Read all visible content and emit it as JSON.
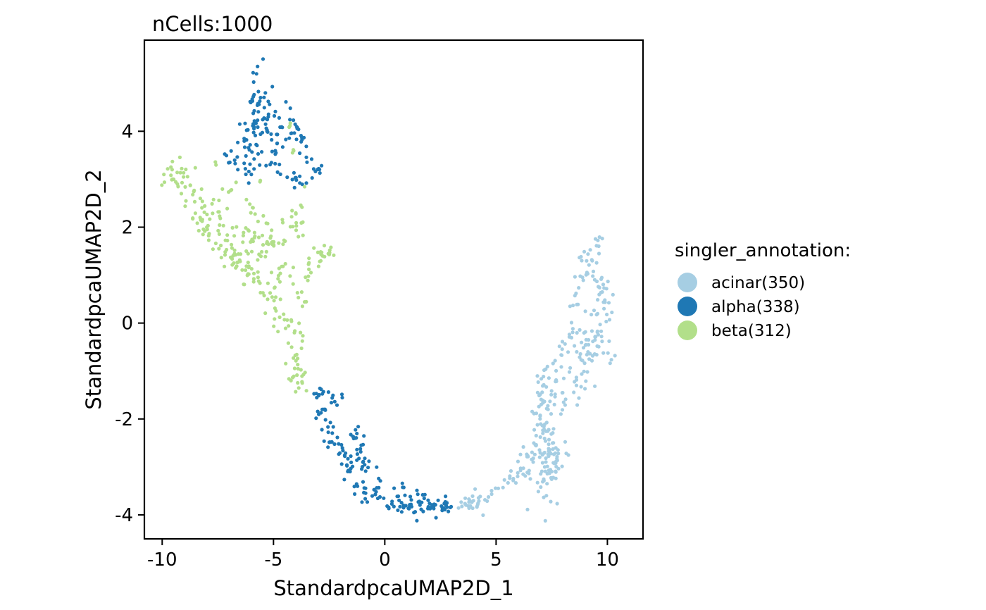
{
  "chart_data": {
    "type": "scatter",
    "title": "nCells:1000",
    "xlabel": "StandardpcaUMAP2D_1",
    "ylabel": "StandardpcaUMAP2D_2",
    "xlim": [
      -10.8,
      11.6
    ],
    "ylim": [
      -4.5,
      5.9
    ],
    "xticks": [
      -10,
      -5,
      0,
      5,
      10
    ],
    "yticks": [
      -4,
      -2,
      0,
      2,
      4
    ],
    "xtick_labels": [
      "-10",
      "-5",
      "0",
      "5",
      "10"
    ],
    "ytick_labels": [
      "-4",
      "-2",
      "0",
      "2",
      "4"
    ],
    "grid": false,
    "legend": {
      "title": "singler_annotation:",
      "position": "right"
    },
    "series": [
      {
        "name": "acinar(350)",
        "color": "#a6cee3",
        "count": 350,
        "clusters": [
          {
            "points": [
              [
                3.2,
                -3.8
              ],
              [
                3.6,
                -3.75
              ],
              [
                4.0,
                -3.8
              ],
              [
                4.3,
                -3.7
              ],
              [
                4.6,
                -3.65
              ],
              [
                4.9,
                -3.55
              ],
              [
                5.2,
                -3.45
              ],
              [
                5.5,
                -3.3
              ],
              [
                5.8,
                -3.2
              ],
              [
                6.1,
                -3.1
              ],
              [
                4.2,
                -3.9
              ],
              [
                3.9,
                -3.65
              ]
            ],
            "sd": [
              0.15,
              0.08
            ],
            "n": 45
          },
          {
            "points": [
              [
                6.3,
                -2.9
              ],
              [
                6.5,
                -3.0
              ],
              [
                6.8,
                -2.6
              ],
              [
                7.0,
                -2.2
              ],
              [
                7.2,
                -2.6
              ],
              [
                7.4,
                -2.0
              ],
              [
                7.6,
                -2.4
              ],
              [
                7.8,
                -2.8
              ],
              [
                7.4,
                -3.1
              ],
              [
                7.6,
                -3.2
              ],
              [
                7.0,
                -1.8
              ],
              [
                7.3,
                -1.5
              ],
              [
                6.9,
                -1.4
              ],
              [
                7.6,
                -1.2
              ],
              [
                6.8,
                -2.9
              ],
              [
                7.1,
                -3.3
              ]
            ],
            "sd": [
              0.25,
              0.22
            ],
            "n": 155
          },
          {
            "points": [
              [
                8.1,
                -1.8
              ],
              [
                8.4,
                -1.4
              ],
              [
                8.6,
                -1.1
              ],
              [
                8.9,
                -0.8
              ],
              [
                9.1,
                -1.2
              ],
              [
                9.3,
                -0.6
              ],
              [
                9.6,
                -0.3
              ],
              [
                9.9,
                -0.2
              ],
              [
                10.1,
                -0.5
              ],
              [
                10.2,
                0.2
              ],
              [
                10.0,
                0.4
              ],
              [
                9.7,
                0.7
              ],
              [
                9.5,
                1.0
              ],
              [
                9.2,
                1.3
              ],
              [
                8.9,
                1.1
              ],
              [
                8.6,
                0.8
              ],
              [
                8.5,
                0.4
              ],
              [
                8.3,
                -0.2
              ],
              [
                8.1,
                -0.6
              ],
              [
                7.9,
                -0.9
              ],
              [
                9.3,
                1.5
              ],
              [
                9.6,
                1.55
              ],
              [
                9.4,
                0.2
              ],
              [
                8.8,
                -0.4
              ]
            ],
            "sd": [
              0.18,
              0.18
            ],
            "n": 150
          }
        ]
      },
      {
        "name": "alpha(338)",
        "color": "#1f78b4",
        "count": 338,
        "clusters": [
          {
            "points": [
              [
                -5.9,
                5.2
              ],
              [
                -5.6,
                5.3
              ],
              [
                -5.3,
                4.9
              ],
              [
                -5.7,
                4.7
              ],
              [
                -6.0,
                4.5
              ],
              [
                -5.4,
                4.4
              ],
              [
                -5.8,
                4.2
              ],
              [
                -5.2,
                4.1
              ],
              [
                -5.6,
                3.9
              ],
              [
                -6.1,
                3.9
              ],
              [
                -6.4,
                3.8
              ],
              [
                -5.0,
                3.8
              ],
              [
                -4.7,
                4.0
              ],
              [
                -4.9,
                4.3
              ],
              [
                -5.5,
                3.5
              ],
              [
                -6.0,
                3.5
              ],
              [
                -6.6,
                3.6
              ],
              [
                -7.0,
                3.4
              ],
              [
                -6.2,
                3.2
              ],
              [
                -5.1,
                3.3
              ],
              [
                -4.6,
                3.2
              ]
            ],
            "sd": [
              0.22,
              0.15
            ],
            "n": 115
          },
          {
            "points": [
              [
                -4.2,
                4.3
              ],
              [
                -4.0,
                4.1
              ],
              [
                -3.8,
                3.9
              ],
              [
                -3.6,
                3.7
              ],
              [
                -3.4,
                3.5
              ],
              [
                -3.2,
                3.3
              ],
              [
                -3.0,
                3.2
              ],
              [
                -3.4,
                3.0
              ],
              [
                -3.7,
                2.9
              ],
              [
                -4.0,
                3.0
              ],
              [
                -3.9,
                2.7
              ]
            ],
            "sd": [
              0.12,
              0.12
            ],
            "n": 40
          },
          {
            "points": [
              [
                -3.0,
                -1.5
              ],
              [
                -2.8,
                -1.8
              ],
              [
                -2.6,
                -2.1
              ],
              [
                -2.4,
                -2.3
              ],
              [
                -2.2,
                -2.5
              ],
              [
                -2.0,
                -2.7
              ],
              [
                -1.8,
                -2.9
              ],
              [
                -1.6,
                -3.0
              ],
              [
                -1.4,
                -3.2
              ],
              [
                -1.1,
                -3.4
              ],
              [
                -0.8,
                -3.5
              ],
              [
                -0.5,
                -3.6
              ],
              [
                -0.2,
                -3.7
              ],
              [
                0.1,
                -3.8
              ],
              [
                0.4,
                -3.8
              ],
              [
                0.7,
                -3.8
              ],
              [
                1.0,
                -3.8
              ],
              [
                1.3,
                -3.9
              ],
              [
                1.6,
                -3.8
              ],
              [
                1.9,
                -3.8
              ],
              [
                2.2,
                -3.8
              ],
              [
                2.5,
                -3.85
              ],
              [
                -1.4,
                -2.3
              ],
              [
                -1.1,
                -2.6
              ],
              [
                -0.8,
                -2.9
              ],
              [
                -2.4,
                -1.5
              ],
              [
                -2.0,
                -1.6
              ],
              [
                0.6,
                -3.5
              ],
              [
                1.4,
                -3.6
              ],
              [
                2.8,
                -3.8
              ],
              [
                -1.0,
                -3.0
              ],
              [
                -0.3,
                -3.4
              ]
            ],
            "sd": [
              0.14,
              0.1
            ],
            "n": 183
          }
        ]
      },
      {
        "name": "beta(312)",
        "color": "#b2df8a",
        "count": 312,
        "clusters": [
          {
            "points": [
              [
                -9.7,
                3.1
              ],
              [
                -9.4,
                3.2
              ],
              [
                -9.2,
                3.0
              ],
              [
                -9.0,
                2.85
              ],
              [
                -8.8,
                2.7
              ],
              [
                -8.6,
                2.5
              ],
              [
                -8.4,
                2.35
              ],
              [
                -8.2,
                2.2
              ],
              [
                -8.0,
                2.0
              ],
              [
                -7.7,
                1.85
              ],
              [
                -7.4,
                1.7
              ],
              [
                -7.1,
                1.55
              ],
              [
                -6.8,
                1.4
              ],
              [
                -6.5,
                1.25
              ],
              [
                -6.2,
                1.1
              ],
              [
                -5.9,
                0.95
              ],
              [
                -5.6,
                0.8
              ],
              [
                -5.3,
                0.65
              ],
              [
                -5.0,
                0.5
              ],
              [
                -4.7,
                0.35
              ],
              [
                -4.5,
                0.2
              ],
              [
                -4.3,
                -0.1
              ],
              [
                -4.2,
                -0.4
              ],
              [
                -4.1,
                -0.7
              ],
              [
                -4.0,
                -1.0
              ],
              [
                -3.9,
                -1.2
              ],
              [
                -9.0,
                3.15
              ],
              [
                -8.2,
                2.6
              ],
              [
                -7.5,
                2.3
              ],
              [
                -6.8,
                2.0
              ],
              [
                -6.0,
                1.8
              ],
              [
                -5.2,
                1.7
              ],
              [
                -4.6,
                1.6
              ],
              [
                -4.4,
                1.1
              ],
              [
                -5.0,
                1.2
              ],
              [
                -6.4,
                1.6
              ],
              [
                -7.2,
                2.5
              ],
              [
                -6.9,
                2.8
              ],
              [
                -6.0,
                2.4
              ],
              [
                -5.4,
                2.2
              ],
              [
                -4.2,
                2.2
              ],
              [
                -3.9,
                2.5
              ],
              [
                -3.8,
                1.9
              ],
              [
                -3.2,
                1.3
              ],
              [
                -2.8,
                1.4
              ],
              [
                -2.5,
                1.55
              ],
              [
                -3.5,
                1.0
              ],
              [
                -4.8,
                0.9
              ],
              [
                -5.6,
                1.4
              ],
              [
                -3.7,
                -0.3
              ],
              [
                -3.8,
                0.6
              ]
            ],
            "sd": [
              0.22,
              0.14
            ],
            "n": 300
          },
          {
            "points": [
              [
                -4.3,
                4.1
              ],
              [
                -4.1,
                3.6
              ],
              [
                -5.0,
                3.3
              ],
              [
                -4.6,
                2.9
              ],
              [
                -7.2,
                3.4
              ],
              [
                -5.6,
                3.0
              ],
              [
                -3.6,
                2.9
              ],
              [
                -4.0,
                2.3
              ],
              [
                -6.5,
                3.1
              ],
              [
                -3.7,
                3.0
              ],
              [
                -7.6,
                3.3
              ],
              [
                -6.0,
                2.9
              ]
            ],
            "sd": [
              0.03,
              0.03
            ],
            "n": 12
          }
        ]
      }
    ]
  }
}
